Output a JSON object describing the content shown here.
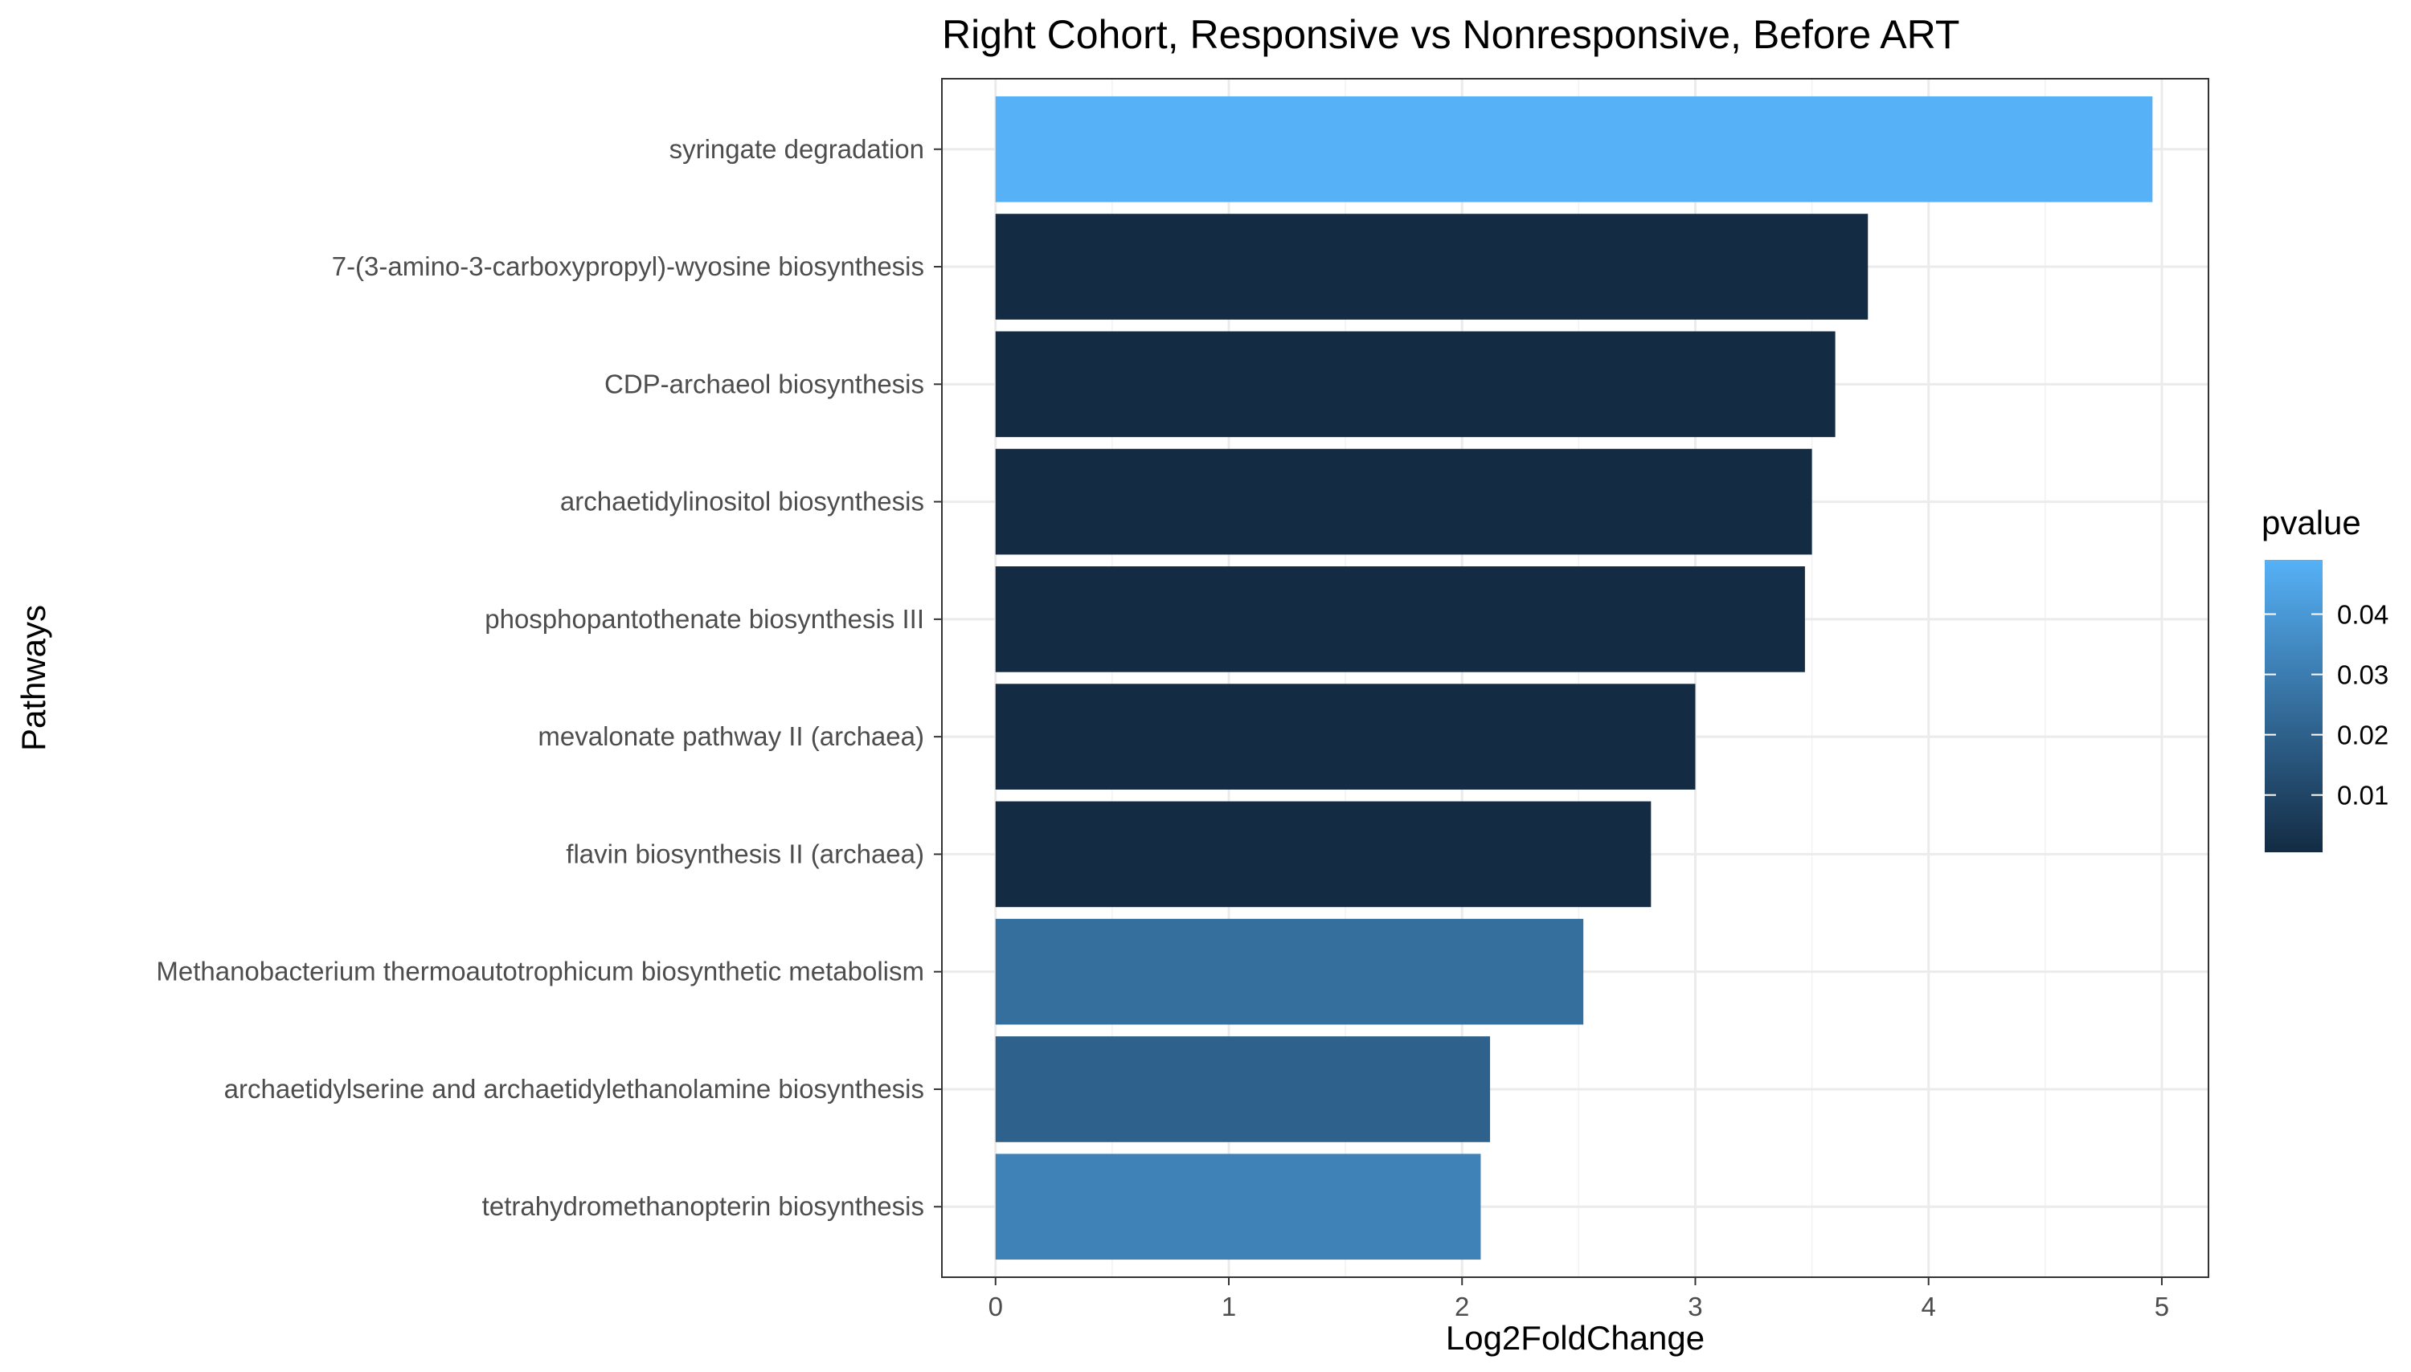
{
  "chart_data": {
    "type": "bar",
    "orientation": "horizontal",
    "title": "Right Cohort, Responsive vs Nonresponsive, Before ART",
    "xlabel": "Log2FoldChange",
    "ylabel": "Pathways",
    "xlim": [
      -0.23,
      5.2
    ],
    "xticks": [
      0,
      1,
      2,
      3,
      4,
      5
    ],
    "xtick_labels": [
      "0",
      "1",
      "2",
      "3",
      "4",
      "5"
    ],
    "grid": true,
    "legend_placement": "right",
    "categories": [
      "syringate degradation",
      "7-(3-amino-3-carboxypropyl)-wyosine biosynthesis",
      "CDP-archaeol biosynthesis",
      "archaetidylinositol biosynthesis",
      "phosphopantothenate biosynthesis III",
      "mevalonate pathway II (archaea)",
      "flavin biosynthesis II (archaea)",
      "Methanobacterium thermoautotrophicum biosynthetic metabolism",
      "archaetidylserine and archaetidylethanolamine biosynthesis",
      "tetrahydromethanopterin biosynthesis"
    ],
    "values": [
      4.96,
      3.74,
      3.6,
      3.5,
      3.47,
      3.0,
      2.81,
      2.52,
      2.12,
      2.08
    ],
    "pvalues": [
      0.049,
      0.0005,
      0.0005,
      0.0008,
      0.0008,
      0.0005,
      0.0008,
      0.025,
      0.02,
      0.032
    ],
    "colorbar": {
      "title": "pvalue",
      "min": 0.0005,
      "max": 0.049,
      "ticks": [
        0.01,
        0.02,
        0.03,
        0.04
      ],
      "tick_labels": [
        "0.01",
        "0.02",
        "0.03",
        "0.04"
      ],
      "low_color": "#132b43",
      "high_color": "#56b1f7"
    }
  }
}
